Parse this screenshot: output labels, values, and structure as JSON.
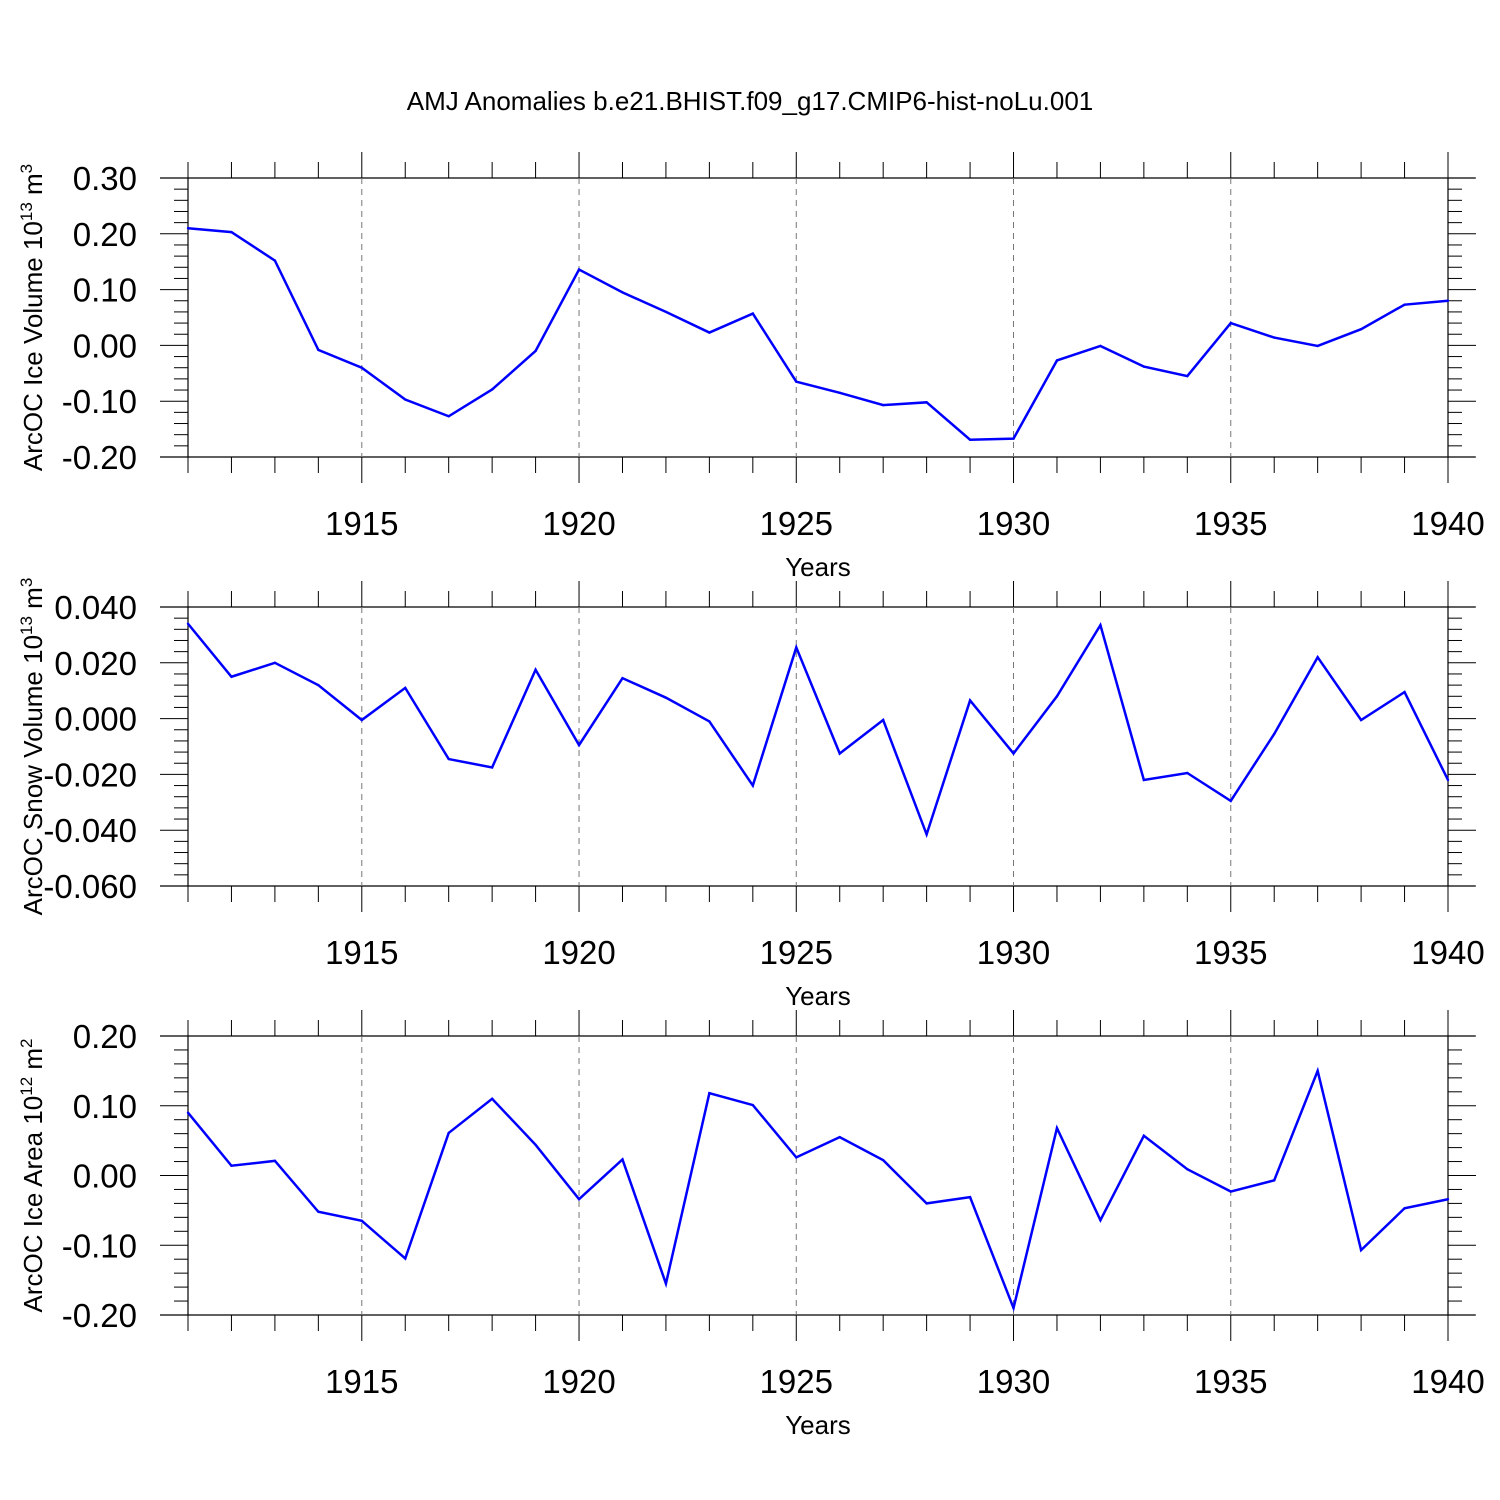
{
  "figure_title": "AMJ Anomalies b.e21.BHIST.f09_g17.CMIP6-hist-noLu.001",
  "line_color": "#0000ff",
  "chart_data": [
    {
      "type": "line",
      "xlabel": "Years",
      "ylabel": {
        "text": "ArcOC Ice Volume 10",
        "exp": "13",
        "unit": " m",
        "unit_exp": "3"
      },
      "xlim": [
        1911,
        1940
      ],
      "ylim": [
        -0.2,
        0.3
      ],
      "yticks": [
        {
          "value": 0.3,
          "label": "0.30"
        },
        {
          "value": 0.2,
          "label": "0.20"
        },
        {
          "value": 0.1,
          "label": "0.10"
        },
        {
          "value": 0.0,
          "label": "0.00"
        },
        {
          "value": -0.1,
          "label": "-0.10"
        },
        {
          "value": -0.2,
          "label": "-0.20"
        }
      ],
      "xticks": [
        {
          "value": 1915,
          "label": "1915"
        },
        {
          "value": 1920,
          "label": "1920"
        },
        {
          "value": 1925,
          "label": "1925"
        },
        {
          "value": 1930,
          "label": "1930"
        },
        {
          "value": 1935,
          "label": "1935"
        },
        {
          "value": 1940,
          "label": "1940"
        }
      ],
      "grid": "vertical dashed at major x ticks",
      "x": [
        1911,
        1912,
        1913,
        1914,
        1915,
        1916,
        1917,
        1918,
        1919,
        1920,
        1921,
        1922,
        1923,
        1924,
        1925,
        1926,
        1927,
        1928,
        1929,
        1930,
        1931,
        1932,
        1933,
        1934,
        1935,
        1936,
        1937,
        1938,
        1939,
        1940
      ],
      "values": [
        0.21,
        0.203,
        0.152,
        -0.008,
        -0.04,
        -0.097,
        -0.127,
        -0.079,
        -0.01,
        0.136,
        0.095,
        0.06,
        0.023,
        0.057,
        -0.065,
        -0.085,
        -0.107,
        -0.102,
        -0.169,
        -0.167,
        -0.027,
        -0.001,
        -0.038,
        -0.055,
        0.04,
        0.014,
        -0.001,
        0.029,
        0.073,
        0.08
      ]
    },
    {
      "type": "line",
      "xlabel": "Years",
      "ylabel": {
        "text": "ArcOC Snow Volume 10",
        "exp": "13",
        "unit": " m",
        "unit_exp": "3"
      },
      "xlim": [
        1911,
        1940
      ],
      "ylim": [
        -0.06,
        0.04
      ],
      "yticks": [
        {
          "value": 0.04,
          "label": "0.040"
        },
        {
          "value": 0.02,
          "label": "0.020"
        },
        {
          "value": 0.0,
          "label": "0.000"
        },
        {
          "value": -0.02,
          "label": "-0.020"
        },
        {
          "value": -0.04,
          "label": "-0.040"
        },
        {
          "value": -0.06,
          "label": "-0.060"
        }
      ],
      "xticks": [
        {
          "value": 1915,
          "label": "1915"
        },
        {
          "value": 1920,
          "label": "1920"
        },
        {
          "value": 1925,
          "label": "1925"
        },
        {
          "value": 1930,
          "label": "1930"
        },
        {
          "value": 1935,
          "label": "1935"
        },
        {
          "value": 1940,
          "label": "1940"
        }
      ],
      "grid": "vertical dashed at major x ticks",
      "x": [
        1911,
        1912,
        1913,
        1914,
        1915,
        1916,
        1917,
        1918,
        1919,
        1920,
        1921,
        1922,
        1923,
        1924,
        1925,
        1926,
        1927,
        1928,
        1929,
        1930,
        1931,
        1932,
        1933,
        1934,
        1935,
        1936,
        1937,
        1938,
        1939,
        1940
      ],
      "values": [
        0.034,
        0.015,
        0.02,
        0.012,
        -0.0005,
        0.011,
        -0.0145,
        -0.0175,
        0.0175,
        -0.0095,
        0.0145,
        0.0075,
        -0.001,
        -0.024,
        0.0255,
        -0.0125,
        -0.0005,
        -0.0415,
        0.0065,
        -0.0125,
        0.008,
        0.0335,
        -0.022,
        -0.0195,
        -0.0295,
        -0.0055,
        0.022,
        -0.0005,
        0.0095,
        -0.022
      ]
    },
    {
      "type": "line",
      "xlabel": "Years",
      "ylabel": {
        "text": "ArcOC Ice Area 10",
        "exp": "12",
        "unit": " m",
        "unit_exp": "2"
      },
      "xlim": [
        1911,
        1940
      ],
      "ylim": [
        -0.2,
        0.2
      ],
      "yticks": [
        {
          "value": 0.2,
          "label": "0.20"
        },
        {
          "value": 0.1,
          "label": "0.10"
        },
        {
          "value": 0.0,
          "label": "0.00"
        },
        {
          "value": -0.1,
          "label": "-0.10"
        },
        {
          "value": -0.2,
          "label": "-0.20"
        }
      ],
      "xticks": [
        {
          "value": 1915,
          "label": "1915"
        },
        {
          "value": 1920,
          "label": "1920"
        },
        {
          "value": 1925,
          "label": "1925"
        },
        {
          "value": 1930,
          "label": "1930"
        },
        {
          "value": 1935,
          "label": "1935"
        },
        {
          "value": 1940,
          "label": "1940"
        }
      ],
      "grid": "vertical dashed at major x ticks",
      "x": [
        1911,
        1912,
        1913,
        1914,
        1915,
        1916,
        1917,
        1918,
        1919,
        1920,
        1921,
        1922,
        1923,
        1924,
        1925,
        1926,
        1927,
        1928,
        1929,
        1930,
        1931,
        1932,
        1933,
        1934,
        1935,
        1936,
        1937,
        1938,
        1939,
        1940
      ],
      "values": [
        0.09,
        0.014,
        0.021,
        -0.052,
        -0.065,
        -0.119,
        0.061,
        0.11,
        0.044,
        -0.034,
        0.023,
        -0.155,
        0.118,
        0.101,
        0.026,
        0.055,
        0.022,
        -0.04,
        -0.031,
        -0.19,
        0.068,
        -0.064,
        0.057,
        0.009,
        -0.023,
        -0.007,
        0.15,
        -0.107,
        -0.047,
        -0.034
      ]
    }
  ]
}
